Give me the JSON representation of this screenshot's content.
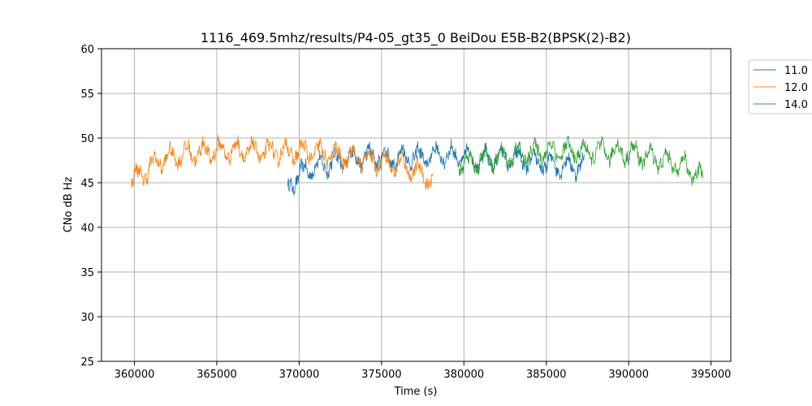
{
  "chart_data": {
    "type": "line",
    "title": "1116_469.5mhz/results/P4-05_gt35_0 BeiDou E5B-B2(BPSK(2)-B2)",
    "xlabel": "Time (s)",
    "ylabel": "CNo dB Hz",
    "xlim": [
      358000,
      396200
    ],
    "ylim": [
      25,
      60
    ],
    "x_ticks": [
      360000,
      365000,
      370000,
      375000,
      380000,
      385000,
      390000,
      395000
    ],
    "y_ticks": [
      25,
      30,
      35,
      40,
      45,
      50,
      55,
      60
    ],
    "grid": true,
    "legend_position": "outside-top-right",
    "series": [
      {
        "name": "11.0",
        "color": "#1f77b4",
        "x": [
          369300,
          369800,
          370500,
          371500,
          372500,
          373500,
          374500,
          375500,
          376500,
          377500,
          378500,
          379500,
          380500,
          381500,
          382500,
          383500,
          384500,
          385500,
          386500,
          387300
        ],
        "y": [
          44.5,
          45.5,
          46.5,
          47.0,
          47.5,
          47.8,
          48.0,
          47.6,
          48.0,
          47.8,
          48.2,
          48.0,
          47.8,
          47.6,
          47.8,
          47.5,
          47.2,
          47.0,
          46.8,
          47.0
        ]
      },
      {
        "name": "12.0",
        "color": "#ff7f0e",
        "x": [
          359800,
          360500,
          361500,
          362500,
          363500,
          364500,
          365500,
          366500,
          367500,
          368500,
          369500,
          370500,
          371500,
          372500,
          373500,
          374500,
          375500,
          376500,
          377500,
          378100
        ],
        "y": [
          45.3,
          46.0,
          47.5,
          48.0,
          48.3,
          48.5,
          48.6,
          48.6,
          48.5,
          48.5,
          48.4,
          48.5,
          48.3,
          48.0,
          47.8,
          47.5,
          47.2,
          46.8,
          46.0,
          45.0
        ]
      },
      {
        "name": "14.0",
        "color": "#2ca02c",
        "x": [
          379700,
          380500,
          381500,
          382500,
          383500,
          384500,
          385500,
          386500,
          387500,
          388500,
          389500,
          390500,
          391500,
          392500,
          393500,
          394500
        ],
        "y": [
          47.0,
          47.3,
          47.6,
          48.0,
          48.2,
          48.5,
          48.6,
          48.5,
          48.4,
          48.5,
          48.4,
          48.2,
          47.8,
          47.3,
          46.8,
          45.5
        ]
      }
    ]
  }
}
